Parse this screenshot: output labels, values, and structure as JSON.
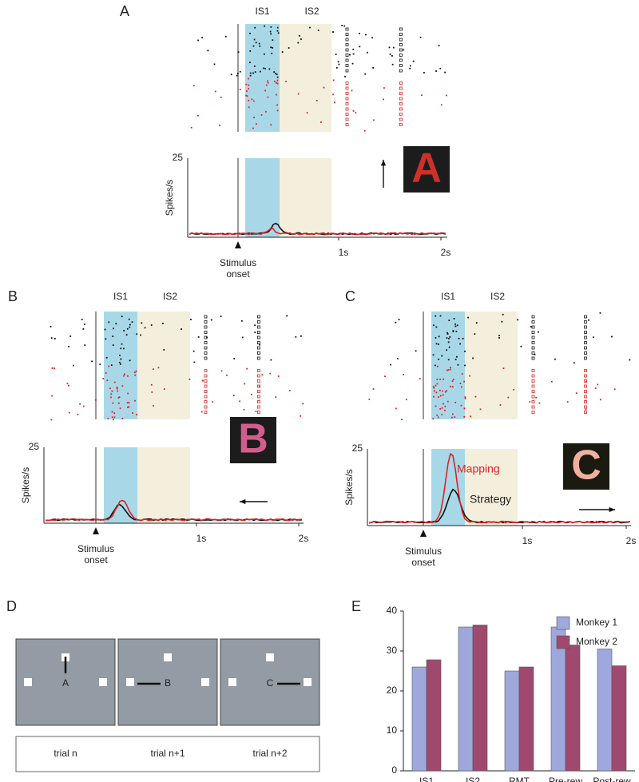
{
  "panels": {
    "A": {
      "label": "A",
      "is1": "IS1",
      "is2": "IS2",
      "ylabel": "Spikes/s",
      "ytick": "25",
      "xticks": [
        "1s",
        "2s"
      ],
      "stimulus": [
        "Stimulus",
        "onset"
      ],
      "icon": "A"
    },
    "B": {
      "label": "B",
      "is1": "IS1",
      "is2": "IS2",
      "ylabel": "Spikes/s",
      "ytick": "25",
      "xticks": [
        "1s",
        "2s"
      ],
      "stimulus": [
        "Stimulus",
        "onset"
      ],
      "icon": "B"
    },
    "C": {
      "label": "C",
      "is1": "IS1",
      "is2": "IS2",
      "ylabel": "Spikes/s",
      "ytick": "25",
      "xticks": [
        "1s",
        "2s"
      ],
      "stimulus": [
        "Stimulus",
        "onset"
      ],
      "icon": "C",
      "legend": [
        "Mapping",
        "Strategy"
      ]
    },
    "D": {
      "label": "D",
      "targets": [
        "A",
        "B",
        "C"
      ],
      "trials": [
        "trial n",
        "trial n+1",
        "trial n+2"
      ]
    },
    "E": {
      "label": "E"
    }
  },
  "chart_data": {
    "type": "bar",
    "categories": [
      "IS1",
      "IS2",
      "RMT",
      "Pre-rew",
      "Post-rew"
    ],
    "series": [
      {
        "name": "Monkey 1",
        "color": "#9fa8dc",
        "values": [
          26,
          36,
          25,
          36,
          30.5
        ]
      },
      {
        "name": "Monkey 2",
        "color": "#a0496e",
        "values": [
          27.8,
          36.5,
          26,
          31.5,
          26.3
        ]
      }
    ],
    "ylim": [
      0,
      40
    ],
    "yticks": [
      0,
      10,
      20,
      30,
      40
    ],
    "legend": "top-right"
  }
}
